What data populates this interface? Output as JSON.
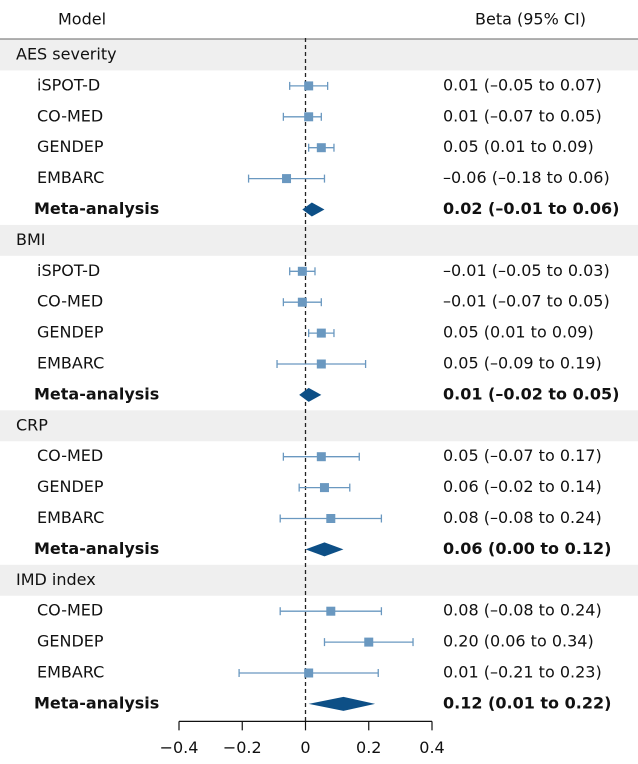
{
  "chart_data": {
    "type": "forest",
    "model_header": "Model",
    "estimate_header": "Beta (95% CI)",
    "xlim": [
      -0.4,
      0.4
    ],
    "xticks": [
      {
        "value": -0.4,
        "label": "−0.4"
      },
      {
        "value": -0.2,
        "label": "−0.2"
      },
      0,
      0.2,
      0.4
    ],
    "reference_line": 0,
    "marker_color": "#6a98c0",
    "summary_color": "#0d4f86",
    "groups": [
      {
        "name": "AES severity",
        "rows": [
          {
            "label": "iSPOT-D",
            "estimate": 0.01,
            "lower": -0.05,
            "upper": 0.07,
            "value_label": "0.01 (–0.05 to 0.07)"
          },
          {
            "label": "CO-MED",
            "estimate": 0.01,
            "lower": -0.07,
            "upper": 0.05,
            "value_label": "0.01 (–0.07 to 0.05)"
          },
          {
            "label": "GENDEP",
            "estimate": 0.05,
            "lower": 0.01,
            "upper": 0.09,
            "value_label": "0.05 (0.01 to 0.09)"
          },
          {
            "label": "EMBARC",
            "estimate": -0.06,
            "lower": -0.18,
            "upper": 0.06,
            "value_label": "–0.06 (–0.18 to 0.06)"
          },
          {
            "label": "Meta-analysis",
            "summary": true,
            "estimate": 0.02,
            "lower": -0.01,
            "upper": 0.06,
            "value_label": "0.02 (–0.01 to 0.06)"
          }
        ]
      },
      {
        "name": "BMI",
        "rows": [
          {
            "label": "iSPOT-D",
            "estimate": -0.01,
            "lower": -0.05,
            "upper": 0.03,
            "value_label": "–0.01 (–0.05 to 0.03)"
          },
          {
            "label": "CO-MED",
            "estimate": -0.01,
            "lower": -0.07,
            "upper": 0.05,
            "value_label": "–0.01 (–0.07 to 0.05)"
          },
          {
            "label": "GENDEP",
            "estimate": 0.05,
            "lower": 0.01,
            "upper": 0.09,
            "value_label": "0.05 (0.01 to 0.09)"
          },
          {
            "label": "EMBARC",
            "estimate": 0.05,
            "lower": -0.09,
            "upper": 0.19,
            "value_label": "0.05 (–0.09 to 0.19)"
          },
          {
            "label": "Meta-analysis",
            "summary": true,
            "estimate": 0.01,
            "lower": -0.02,
            "upper": 0.05,
            "value_label": "0.01 (–0.02 to 0.05)"
          }
        ]
      },
      {
        "name": "CRP",
        "rows": [
          {
            "label": "CO-MED",
            "estimate": 0.05,
            "lower": -0.07,
            "upper": 0.17,
            "value_label": "0.05 (–0.07 to 0.17)"
          },
          {
            "label": "GENDEP",
            "estimate": 0.06,
            "lower": -0.02,
            "upper": 0.14,
            "value_label": "0.06 (–0.02 to 0.14)"
          },
          {
            "label": "EMBARC",
            "estimate": 0.08,
            "lower": -0.08,
            "upper": 0.24,
            "value_label": "0.08 (–0.08 to 0.24)"
          },
          {
            "label": "Meta-analysis",
            "summary": true,
            "estimate": 0.06,
            "lower": 0.0,
            "upper": 0.12,
            "value_label": "0.06 (0.00 to 0.12)"
          }
        ]
      },
      {
        "name": "IMD index",
        "rows": [
          {
            "label": "CO-MED",
            "estimate": 0.08,
            "lower": -0.08,
            "upper": 0.24,
            "value_label": "0.08 (–0.08 to 0.24)"
          },
          {
            "label": "GENDEP",
            "estimate": 0.2,
            "lower": 0.06,
            "upper": 0.34,
            "value_label": "0.20 (0.06 to 0.34)"
          },
          {
            "label": "EMBARC",
            "estimate": 0.01,
            "lower": -0.21,
            "upper": 0.23,
            "value_label": "0.01 (–0.21 to 0.23)"
          },
          {
            "label": "Meta-analysis",
            "summary": true,
            "estimate": 0.12,
            "lower": 0.01,
            "upper": 0.22,
            "value_label": "0.12 (0.01 to 0.22)"
          }
        ]
      }
    ]
  }
}
